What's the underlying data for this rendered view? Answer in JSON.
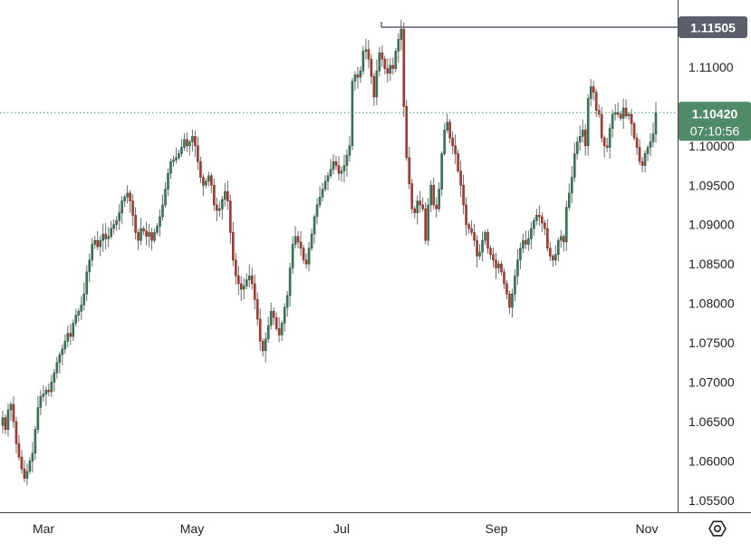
{
  "colors": {
    "up": "#3a7a5a",
    "down": "#b03c32",
    "wick": "#6b6b6b",
    "axis_text": "#222222",
    "axis_line": "#404040",
    "ref_line": "#5a5f6b",
    "price_box": "#4f8a69",
    "ref_box": "#5a5f6b",
    "current_line": "#4f8a69"
  },
  "chart_data": {
    "type": "candlestick",
    "title": "",
    "xlabel": "",
    "ylabel": "",
    "ylim": [
      1.0535,
      1.1185
    ],
    "y_ticks": [
      "1.11000",
      "1.10500",
      "1.10000",
      "1.09500",
      "1.09000",
      "1.08500",
      "1.08000",
      "1.07500",
      "1.07000",
      "1.06500",
      "1.06000",
      "1.05500"
    ],
    "x_ticks": [
      "Mar",
      "May",
      "Jul",
      "Sep",
      "Nov"
    ],
    "reference_level": {
      "value": 1.11505,
      "label": "1.11505"
    },
    "last_price": {
      "value": 1.1042,
      "label": "1.10420",
      "countdown": "07:10:56"
    },
    "x_axis_icon": "settings-icon",
    "grid": false,
    "closes": [
      1.0655,
      1.064,
      1.0665,
      1.0672,
      1.065,
      1.0622,
      1.0605,
      1.059,
      1.0578,
      1.0587,
      1.06,
      1.061,
      1.064,
      1.0668,
      1.0682,
      1.0685,
      1.069,
      1.0688,
      1.07,
      1.0712,
      1.0725,
      1.0735,
      1.0742,
      1.0752,
      1.0762,
      1.0758,
      1.0775,
      1.0785,
      1.079,
      1.0798,
      1.0812,
      1.084,
      1.0855,
      1.0875,
      1.088,
      1.0872,
      1.088,
      1.0888,
      1.0882,
      1.0885,
      1.0895,
      1.09,
      1.0905,
      1.0915,
      1.093,
      1.0935,
      1.094,
      1.093,
      1.0912,
      1.089,
      1.088,
      1.0895,
      1.0892,
      1.0885,
      1.089,
      1.088,
      1.089,
      1.0898,
      1.091,
      1.0925,
      1.0945,
      1.0965,
      1.098,
      1.0982,
      1.0985,
      1.099,
      1.0998,
      1.1008,
      1.1,
      1.1005,
      1.1012,
      1.1,
      1.098,
      1.096,
      1.095,
      1.0955,
      1.0962,
      1.095,
      1.0925,
      1.0918,
      1.092,
      1.0932,
      1.0942,
      1.093,
      1.089,
      1.0855,
      1.0835,
      1.0825,
      1.0818,
      1.0822,
      1.083,
      1.0835,
      1.0825,
      1.0805,
      1.078,
      1.0752,
      1.074,
      1.0755,
      1.0772,
      1.079,
      1.0782,
      1.0768,
      1.076,
      1.0775,
      1.0795,
      1.081,
      1.0845,
      1.0875,
      1.0885,
      1.0878,
      1.087,
      1.0855,
      1.085,
      1.087,
      1.0888,
      1.091,
      1.0925,
      1.0935,
      1.0945,
      1.0955,
      1.0962,
      1.097,
      1.098,
      1.0975,
      1.0965,
      1.0968,
      1.0975,
      1.0988,
      1.1,
      1.1082,
      1.109,
      1.1087,
      1.1095,
      1.112,
      1.1122,
      1.111,
      1.1088,
      1.1062,
      1.1095,
      1.1118,
      1.111,
      1.1098,
      1.1092,
      1.1102,
      1.1098,
      1.112,
      1.1135,
      1.1148,
      1.105,
      1.0985,
      1.0952,
      1.092,
      1.0915,
      1.093,
      1.0925,
      1.092,
      1.088,
      1.0925,
      1.095,
      1.0925,
      1.092,
      1.0945,
      1.099,
      1.102,
      1.103,
      1.101,
      1.1,
      1.099,
      1.0968,
      1.095,
      1.0925,
      1.09,
      1.0895,
      1.089,
      1.088,
      1.086,
      1.0865,
      1.088,
      1.089,
      1.087,
      1.0862,
      1.0855,
      1.0845,
      1.085,
      1.084,
      1.0825,
      1.0812,
      1.0795,
      1.0812,
      1.0835,
      1.0855,
      1.087,
      1.088,
      1.0875,
      1.0882,
      1.0895,
      1.0905,
      1.0912,
      1.091,
      1.0902,
      1.0895,
      1.087,
      1.086,
      1.0855,
      1.0862,
      1.088,
      1.0885,
      1.0878,
      1.0922,
      1.094,
      1.096,
      1.099,
      1.1005,
      1.1012,
      1.102,
      1.1,
      1.106,
      1.1075,
      1.1068,
      1.1045,
      1.104,
      1.101,
      1.1,
      1.0998,
      1.1022,
      1.104,
      1.1042,
      1.104,
      1.1035,
      1.1048,
      1.1038,
      1.104,
      1.1028,
      1.101,
      1.0998,
      1.098,
      1.0975,
      1.099,
      1.0998,
      1.1005,
      1.1015,
      1.1042
    ]
  }
}
